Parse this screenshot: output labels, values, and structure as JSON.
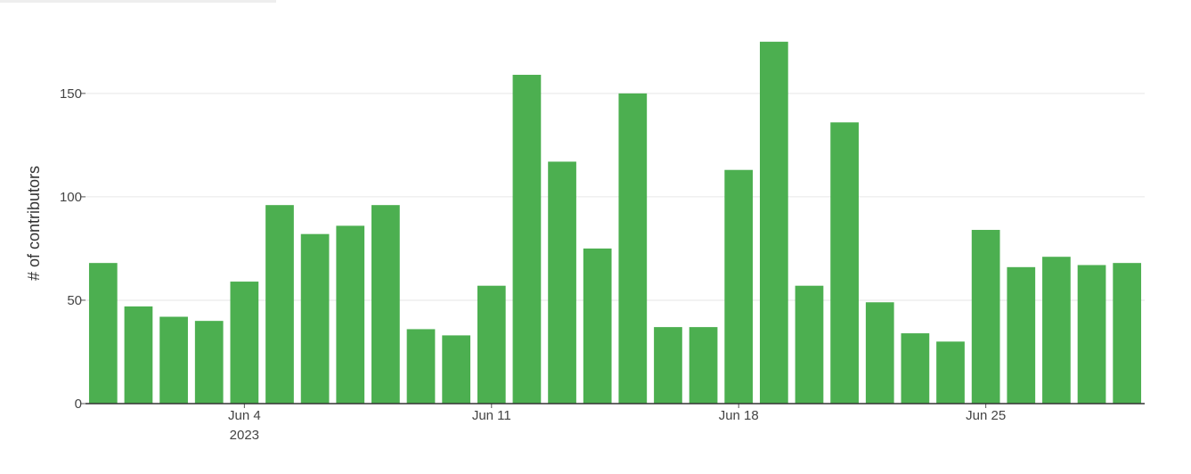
{
  "chart_data": {
    "type": "bar",
    "title": "",
    "xlabel": "",
    "ylabel": "# of contributors",
    "ylim": [
      0,
      190
    ],
    "yticks": [
      0,
      50,
      100,
      150
    ],
    "grid": true,
    "legend": "none",
    "bar_color": "#4caf50",
    "x": [
      "2023-05-31",
      "2023-06-01",
      "2023-06-02",
      "2023-06-03",
      "2023-06-04",
      "2023-06-05",
      "2023-06-06",
      "2023-06-07",
      "2023-06-08",
      "2023-06-09",
      "2023-06-10",
      "2023-06-11",
      "2023-06-12",
      "2023-06-13",
      "2023-06-14",
      "2023-06-15",
      "2023-06-16",
      "2023-06-17",
      "2023-06-18",
      "2023-06-19",
      "2023-06-20",
      "2023-06-21",
      "2023-06-22",
      "2023-06-23",
      "2023-06-24",
      "2023-06-25",
      "2023-06-26",
      "2023-06-27",
      "2023-06-28",
      "2023-06-29"
    ],
    "values": [
      68,
      47,
      42,
      40,
      59,
      96,
      82,
      86,
      96,
      36,
      33,
      57,
      159,
      117,
      75,
      150,
      37,
      37,
      113,
      175,
      57,
      136,
      49,
      34,
      30,
      84,
      66,
      71,
      67,
      68
    ],
    "xtick_labels": [
      {
        "x": "2023-06-04",
        "label": "Jun 4",
        "sublabel": "2023"
      },
      {
        "x": "2023-06-11",
        "label": "Jun 11",
        "sublabel": ""
      },
      {
        "x": "2023-06-18",
        "label": "Jun 18",
        "sublabel": ""
      },
      {
        "x": "2023-06-25",
        "label": "Jun 25",
        "sublabel": ""
      }
    ]
  }
}
